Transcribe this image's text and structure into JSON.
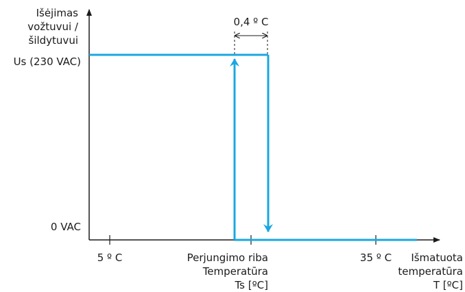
{
  "y_axis_label_lines": [
    "Išėjimas",
    "vožtuvui /",
    "šildytuvui"
  ],
  "y_level_high": "Us (230 VAC)",
  "y_level_low": "0 VAC",
  "hysteresis_label": "0,4 º C",
  "x_tick_low": "5 º C",
  "x_tick_high": "35 º C",
  "switch_point_label_lines": [
    "Perjungimo riba",
    "Temperatūra",
    "Ts [ºC]"
  ],
  "x_axis_label_lines": [
    "Išmatuota",
    "temperatūra",
    "T [ºC]"
  ],
  "colors": {
    "curve": "#1aa7e0",
    "axis": "#1a1a1a"
  }
}
